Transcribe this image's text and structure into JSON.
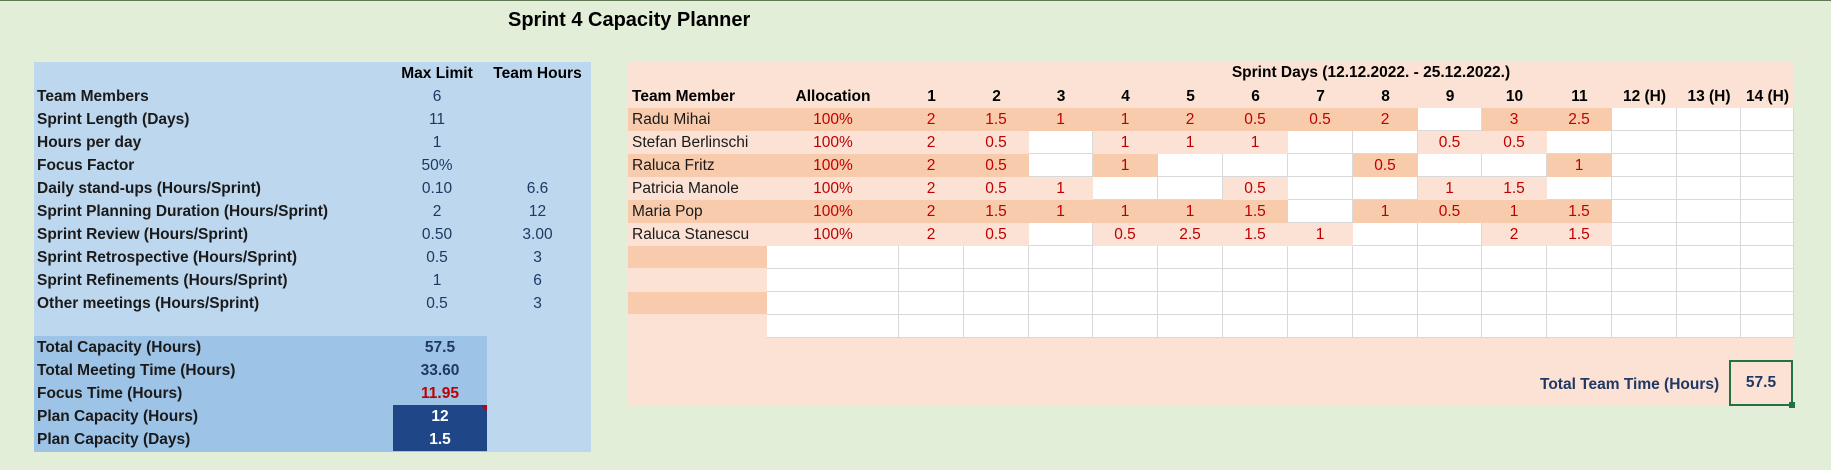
{
  "title": "Sprint 4 Capacity Planner",
  "left": {
    "headers": {
      "max_limit": "Max Limit",
      "team_hours": "Team Hours"
    },
    "rows": [
      {
        "label": "Team Members",
        "max": "6",
        "team": ""
      },
      {
        "label": "Sprint Length (Days)",
        "max": "11",
        "team": ""
      },
      {
        "label": "Hours per day",
        "max": "1",
        "team": ""
      },
      {
        "label": "Focus Factor",
        "max": "50%",
        "team": ""
      },
      {
        "label": "Daily stand-ups (Hours/Sprint)",
        "max": "0.10",
        "team": "6.6"
      },
      {
        "label": "Sprint Planning Duration (Hours/Sprint)",
        "max": "2",
        "team": "12"
      },
      {
        "label": "Sprint Review (Hours/Sprint)",
        "max": "0.50",
        "team": "3.00"
      },
      {
        "label": "Sprint Retrospective (Hours/Sprint)",
        "max": "0.5",
        "team": "3"
      },
      {
        "label": "Sprint Refinements (Hours/Sprint)",
        "max": "1",
        "team": "6"
      },
      {
        "label": "Other meetings (Hours/Sprint)",
        "max": "0.5",
        "team": "3"
      }
    ],
    "summary": [
      {
        "label": "Total Capacity (Hours)",
        "value": "57.5"
      },
      {
        "label": "Total Meeting Time (Hours)",
        "value": "33.60"
      },
      {
        "label": "Focus Time (Hours)",
        "value": "11.95"
      },
      {
        "label": "Plan Capacity (Hours)",
        "value": "12"
      },
      {
        "label": "Plan Capacity (Days)",
        "value": "1.5"
      }
    ]
  },
  "right": {
    "sprint_days_title": "Sprint Days (12.12.2022. - 25.12.2022.)",
    "col_team_member": "Team Member",
    "col_allocation": "Allocation",
    "days": [
      "1",
      "2",
      "3",
      "4",
      "5",
      "6",
      "7",
      "8",
      "9",
      "10",
      "11",
      "12 (H)",
      "13 (H)",
      "14 (H)"
    ],
    "members": [
      {
        "name": "Radu Mihai",
        "allocation": "100%",
        "values": [
          "2",
          "1.5",
          "1",
          "1",
          "2",
          "0.5",
          "0.5",
          "2",
          "",
          "3",
          "2.5",
          "",
          "",
          ""
        ]
      },
      {
        "name": "Stefan Berlinschi",
        "allocation": "100%",
        "values": [
          "2",
          "0.5",
          "",
          "1",
          "1",
          "1",
          "",
          "",
          "0.5",
          "0.5",
          "",
          "",
          "",
          ""
        ]
      },
      {
        "name": "Raluca Fritz",
        "allocation": "100%",
        "values": [
          "2",
          "0.5",
          "",
          "1",
          "",
          "",
          "",
          "0.5",
          "",
          "",
          "1",
          "",
          "",
          ""
        ]
      },
      {
        "name": "Patricia Manole",
        "allocation": "100%",
        "values": [
          "2",
          "0.5",
          "1",
          "",
          "",
          "0.5",
          "",
          "",
          "1",
          "1.5",
          "",
          "",
          "",
          ""
        ]
      },
      {
        "name": "Maria Pop",
        "allocation": "100%",
        "values": [
          "2",
          "1.5",
          "1",
          "1",
          "1",
          "1.5",
          "",
          "1",
          "0.5",
          "1",
          "1.5",
          "",
          "",
          ""
        ]
      },
      {
        "name": "Raluca Stanescu",
        "allocation": "100%",
        "values": [
          "2",
          "0.5",
          "",
          "0.5",
          "2.5",
          "1.5",
          "1",
          "",
          "",
          "2",
          "1.5",
          "",
          "",
          ""
        ]
      }
    ],
    "total_label": "Total Team Time (Hours)",
    "total_value": "57.5"
  },
  "colors": {
    "background": "#e3eed8",
    "left_panel": "#bdd7ee",
    "summary": "#9dc3e6",
    "dark_cell": "#1f4788",
    "right_panel": "#fbe2d5",
    "filled_cell": "#f8cbad",
    "value_red": "#c00000",
    "value_blue": "#1f3864"
  }
}
